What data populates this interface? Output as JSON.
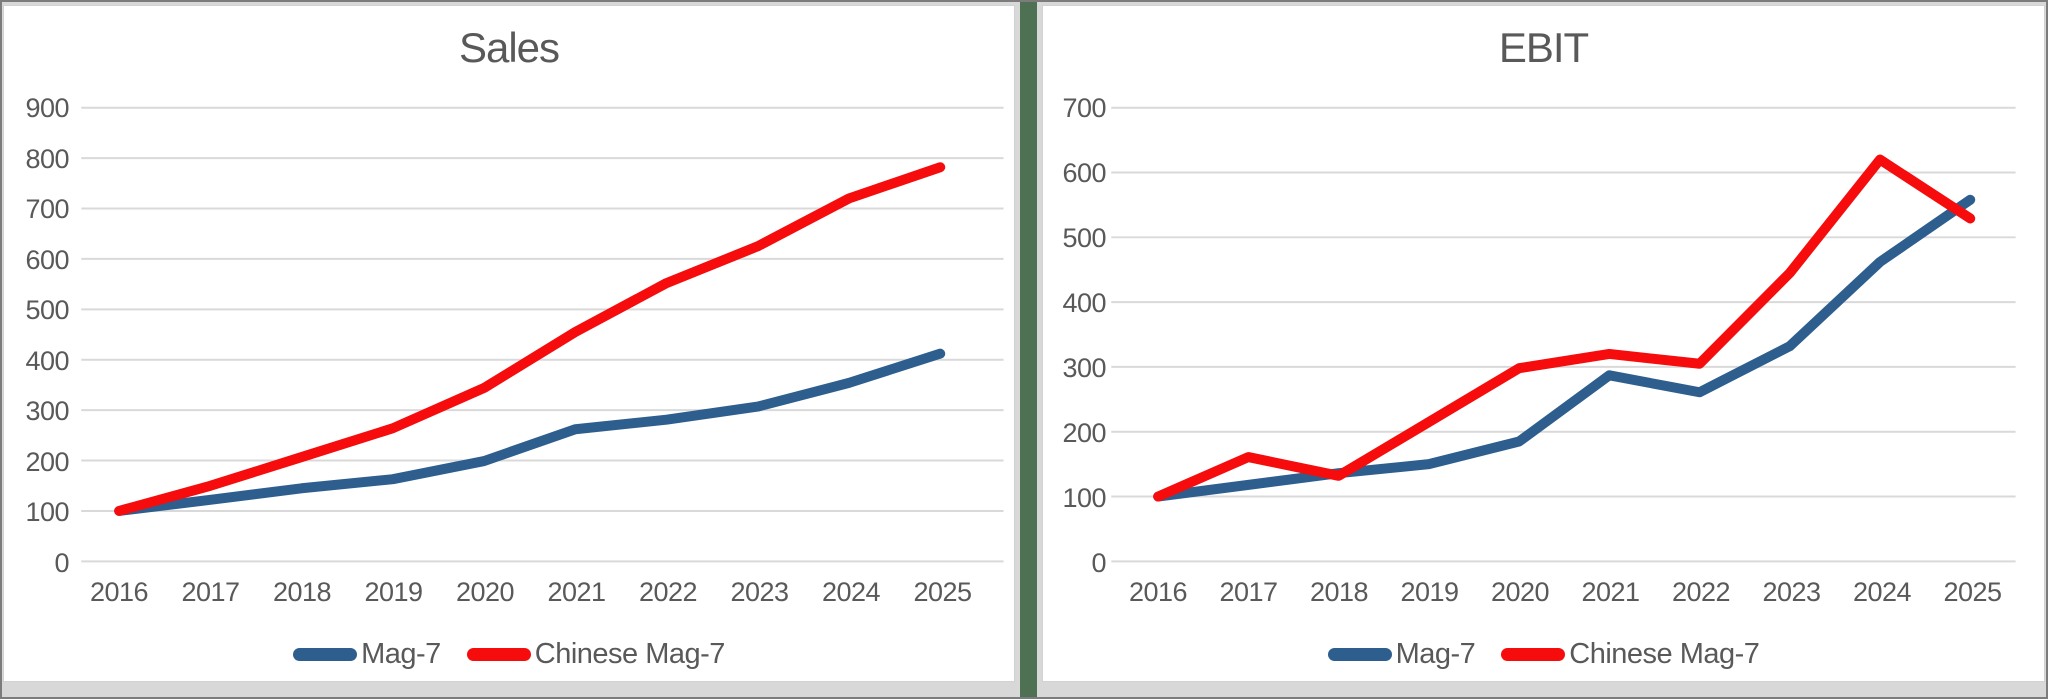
{
  "colors": {
    "mag7_blue": "#2E5E8E",
    "chinese_mag7_red": "#F60C0C",
    "gridline": "#D9D9D9",
    "axis_text": "#595959",
    "divider_green": "#4E7154",
    "panel_background": "#FFFFFF",
    "outer_background": "#D8D8D8"
  },
  "chart_data": [
    {
      "type": "line",
      "title": "Sales",
      "x": [
        "2016",
        "2017",
        "2018",
        "2019",
        "2020",
        "2021",
        "2022",
        "2023",
        "2024",
        "2025"
      ],
      "ylim": [
        0,
        900
      ],
      "ytick_step": 100,
      "yticks": [
        "0",
        "100",
        "200",
        "300",
        "400",
        "500",
        "600",
        "700",
        "800",
        "900"
      ],
      "grid": true,
      "legend_position": "bottom",
      "series": [
        {
          "name": "Mag-7",
          "color": "#2E5E8E",
          "values": [
            100,
            122,
            145,
            163,
            199,
            262,
            281,
            307,
            354,
            412
          ]
        },
        {
          "name": "Chinese Mag-7",
          "color": "#F60C0C",
          "values": [
            100,
            150,
            207,
            264,
            344,
            455,
            552,
            625,
            720,
            782
          ]
        }
      ]
    },
    {
      "type": "line",
      "title": "EBIT",
      "x": [
        "2016",
        "2017",
        "2018",
        "2019",
        "2020",
        "2021",
        "2022",
        "2023",
        "2024",
        "2025"
      ],
      "ylim": [
        0,
        700
      ],
      "ytick_step": 100,
      "yticks": [
        "0",
        "100",
        "200",
        "300",
        "400",
        "500",
        "600",
        "700"
      ],
      "grid": true,
      "legend_position": "bottom",
      "series": [
        {
          "name": "Mag-7",
          "color": "#2E5E8E",
          "values": [
            100,
            118,
            136,
            150,
            185,
            287,
            261,
            332,
            462,
            558
          ]
        },
        {
          "name": "Chinese Mag-7",
          "color": "#F60C0C",
          "values": [
            100,
            161,
            132,
            215,
            298,
            320,
            305,
            445,
            620,
            529
          ]
        }
      ]
    }
  ]
}
